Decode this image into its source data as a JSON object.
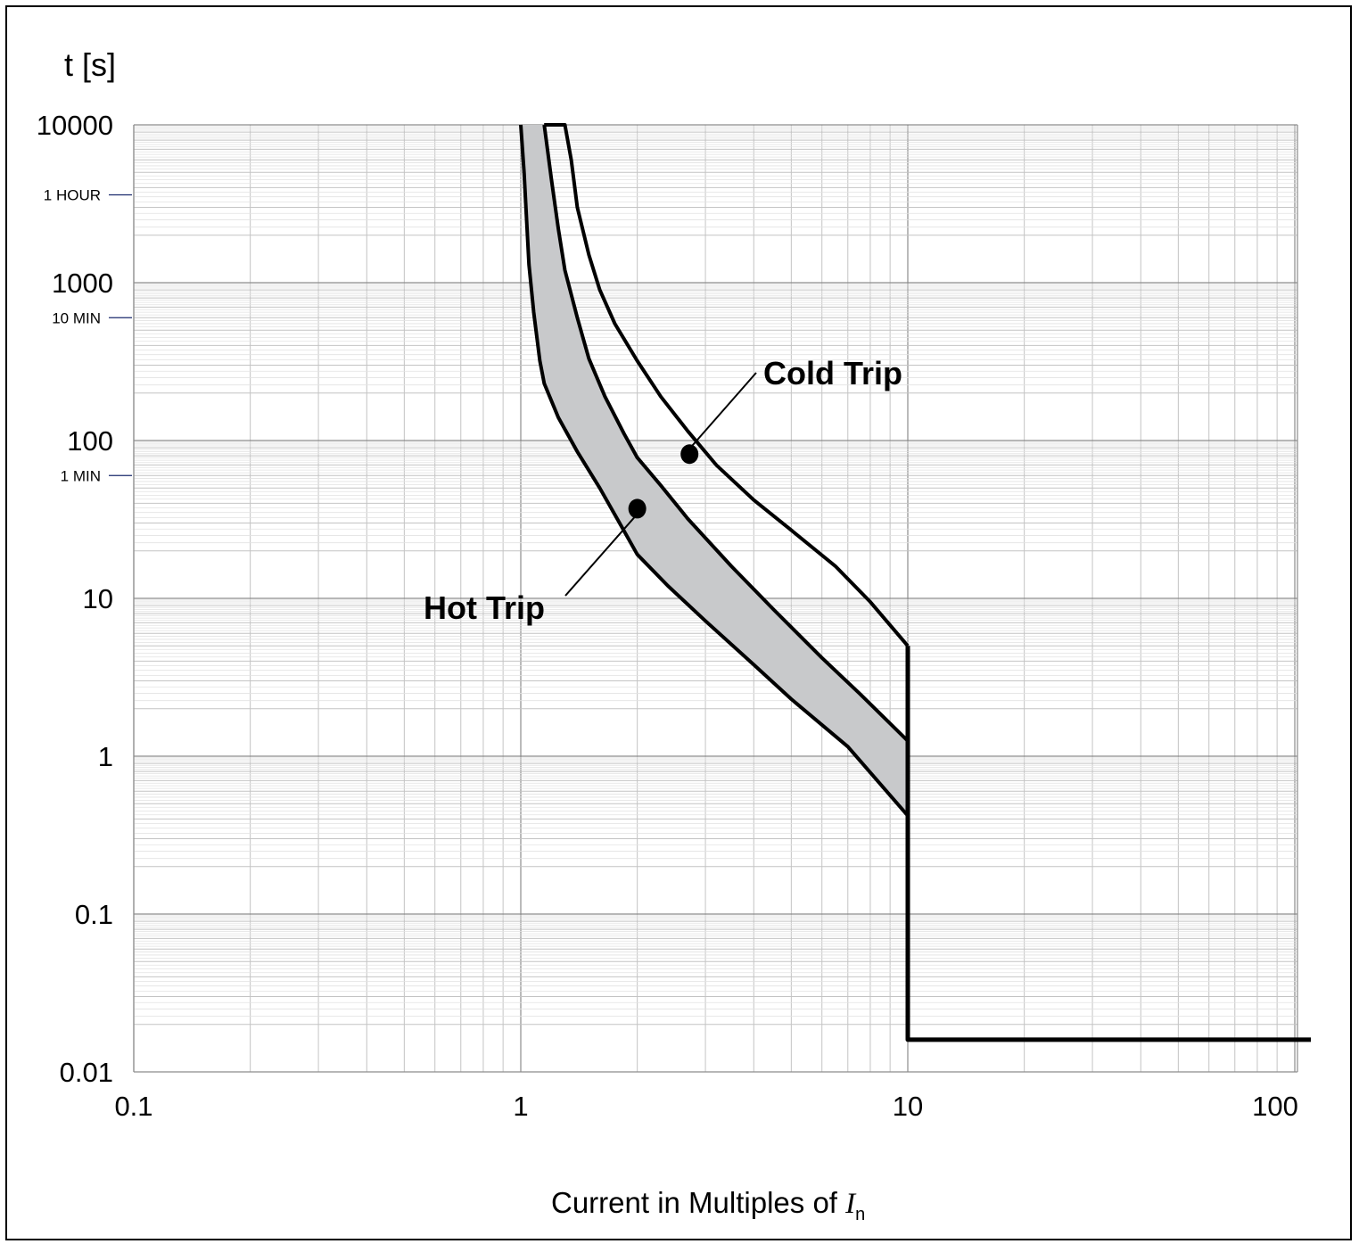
{
  "chart_data": {
    "type": "line",
    "x_scale": "log",
    "y_scale": "log",
    "xlim": [
      0.1,
      110
    ],
    "ylim": [
      0.01,
      10000
    ],
    "xlabel": "Current in Multiples of ",
    "xlabel_italic": "I",
    "xlabel_sub": "n",
    "ylabel": "t [s]",
    "grid": true,
    "x_ticks": [
      {
        "value": 0.1,
        "label": "0.1"
      },
      {
        "value": 1,
        "label": "1"
      },
      {
        "value": 10,
        "label": "10"
      },
      {
        "value": 100,
        "label": "100"
      }
    ],
    "y_ticks": [
      {
        "value": 10000,
        "label": "10000"
      },
      {
        "value": 1000,
        "label": "1000"
      },
      {
        "value": 100,
        "label": "100"
      },
      {
        "value": 10,
        "label": "10"
      },
      {
        "value": 1,
        "label": "1"
      },
      {
        "value": 0.1,
        "label": "0.1"
      },
      {
        "value": 0.01,
        "label": "0.01"
      }
    ],
    "time_markers": [
      {
        "value": 3600,
        "label": "1 HOUR"
      },
      {
        "value": 600,
        "label": "10 MIN"
      },
      {
        "value": 60,
        "label": "1 MIN"
      }
    ],
    "series": [
      {
        "role": "cold-upper",
        "points": [
          [
            1.15,
            10000
          ],
          [
            1.3,
            10000
          ],
          [
            1.35,
            6000
          ],
          [
            1.4,
            3000
          ],
          [
            1.5,
            1500
          ],
          [
            1.6,
            900
          ],
          [
            1.75,
            550
          ],
          [
            2.0,
            320
          ],
          [
            2.3,
            190
          ],
          [
            2.7,
            115
          ],
          [
            3.2,
            70
          ],
          [
            4.0,
            42
          ],
          [
            5.0,
            27
          ],
          [
            6.5,
            16
          ],
          [
            8.0,
            9.5
          ],
          [
            10.0,
            5.0
          ]
        ]
      },
      {
        "role": "hot-upper",
        "points": [
          [
            1.15,
            10000
          ],
          [
            1.2,
            4500
          ],
          [
            1.25,
            2200
          ],
          [
            1.3,
            1200
          ],
          [
            1.4,
            600
          ],
          [
            1.5,
            330
          ],
          [
            1.65,
            190
          ],
          [
            1.85,
            110
          ],
          [
            2.0,
            78
          ],
          [
            2.3,
            52
          ],
          [
            2.7,
            32
          ],
          [
            3.5,
            16
          ],
          [
            4.5,
            8.5
          ],
          [
            6.0,
            4.2
          ],
          [
            7.5,
            2.5
          ],
          [
            10.0,
            1.25
          ]
        ]
      },
      {
        "role": "hot-lower",
        "points": [
          [
            1.0,
            10000
          ],
          [
            1.02,
            5000
          ],
          [
            1.05,
            1300
          ],
          [
            1.08,
            650
          ],
          [
            1.12,
            320
          ],
          [
            1.15,
            230
          ],
          [
            1.25,
            140
          ],
          [
            1.4,
            85
          ],
          [
            1.6,
            50
          ],
          [
            1.8,
            30
          ],
          [
            2.0,
            19
          ],
          [
            2.4,
            12
          ],
          [
            3.0,
            7.2
          ],
          [
            4.0,
            3.8
          ],
          [
            5.0,
            2.3
          ],
          [
            7.0,
            1.15
          ],
          [
            10.0,
            0.42
          ]
        ]
      },
      {
        "role": "instantaneous",
        "points": [
          [
            10.0,
            5.0
          ],
          [
            10.0,
            0.016
          ],
          [
            110,
            0.016
          ]
        ]
      }
    ],
    "annotations": [
      {
        "label": "Cold Trip",
        "point": [
          2.7,
          82
        ]
      },
      {
        "label": "Hot Trip",
        "point": [
          2.0,
          37
        ]
      }
    ]
  }
}
